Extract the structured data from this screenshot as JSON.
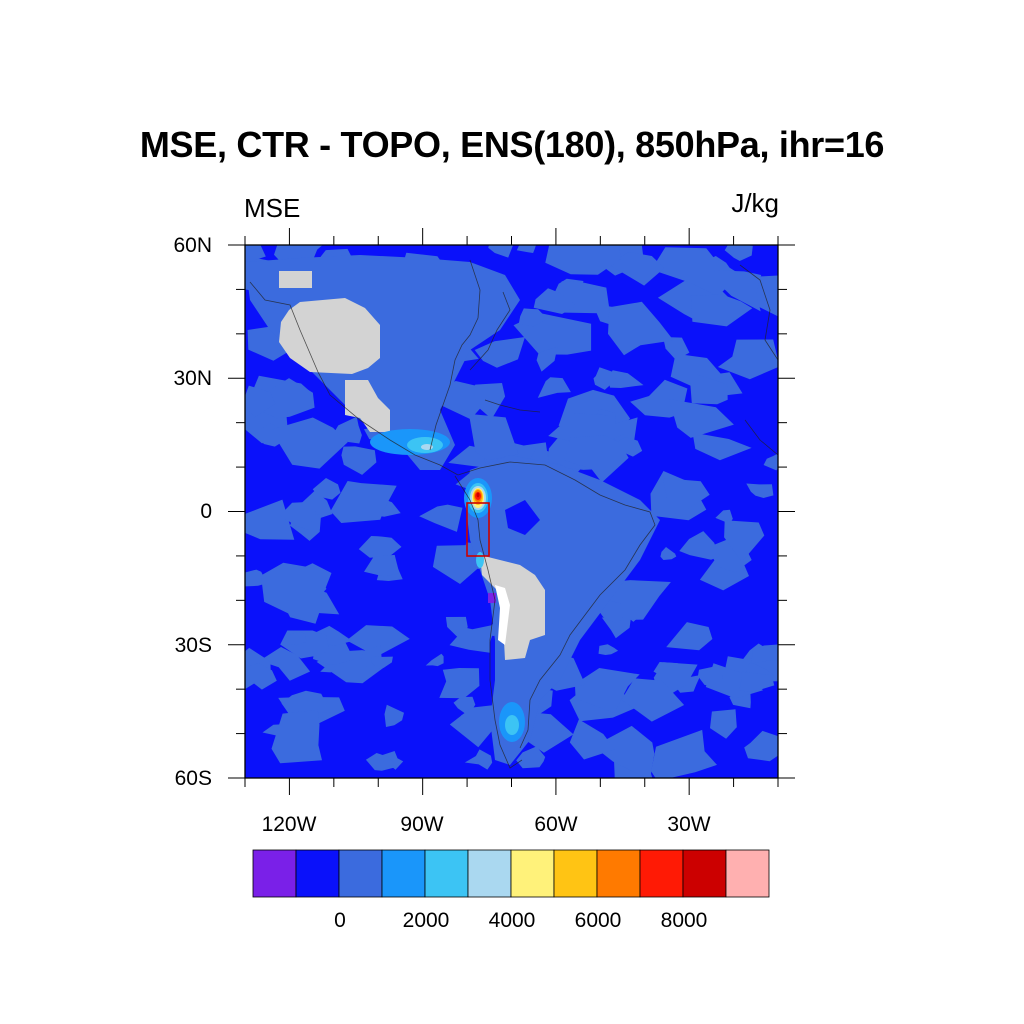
{
  "title": "MSE, CTR - TOPO, ENS(180), 850hPa, ihr=16",
  "left_string": "MSE",
  "right_string": "J/kg",
  "map": {
    "projection": "cylindrical-equidistant",
    "lat_range": [
      -60,
      60
    ],
    "lon_range": [
      -130,
      -10
    ],
    "lat_ticks": [
      "60N",
      "30N",
      "0",
      "30S",
      "60S"
    ],
    "lon_ticks": [
      "120W",
      "90W",
      "60W",
      "30W"
    ],
    "missing_color": "#d3d3d3",
    "box_color": "#cc0000",
    "highlight_box": {
      "lon": [
        -80,
        -75
      ],
      "lat": [
        -10,
        2
      ]
    }
  },
  "colorbar": {
    "labels": [
      "0",
      "2000",
      "4000",
      "6000",
      "8000"
    ],
    "colors": [
      "#7a20e8",
      "#0a11fa",
      "#3b6bde",
      "#1a96fa",
      "#3cc4f4",
      "#aad8f0",
      "#fff27a",
      "#ffc414",
      "#ff7a00",
      "#ff1a05",
      "#cc0000",
      "#ffb0b0"
    ]
  }
}
